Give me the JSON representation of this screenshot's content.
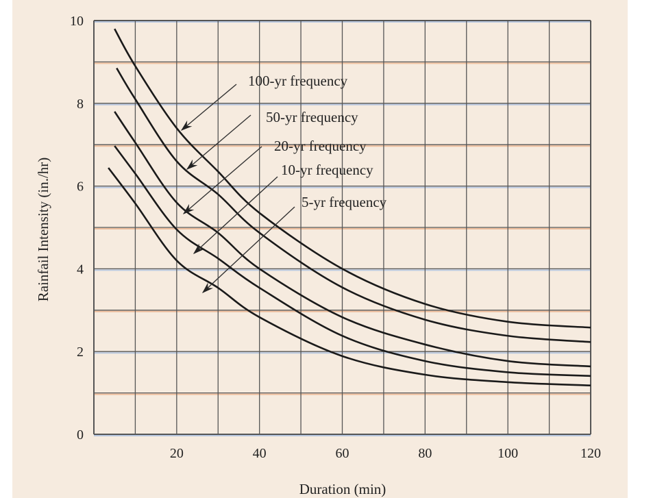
{
  "chart_data": {
    "type": "line",
    "title": "",
    "xlabel": "Duration (min)",
    "ylabel": "Rainfail Intensity (in./hr)",
    "xlim": [
      0,
      120
    ],
    "ylim": [
      0,
      10
    ],
    "x_ticks": [
      20,
      40,
      60,
      80,
      100,
      120
    ],
    "y_ticks": [
      0,
      2,
      4,
      6,
      8,
      10
    ],
    "grid": true,
    "legend": "annotations with arrows pointing to curves",
    "colors": {
      "background": "#f6ebdf",
      "grid": "#555555",
      "grid_tint_a": "#e8a070",
      "grid_tint_b": "#8fb0e0",
      "curve": "#1a1a1a"
    },
    "series": [
      {
        "name": "100-yr frequency",
        "x": [
          5,
          10,
          20,
          30,
          40,
          60,
          80,
          100,
          120
        ],
        "y": [
          9.8,
          8.9,
          7.4,
          6.35,
          5.35,
          4.0,
          3.15,
          2.72,
          2.58
        ]
      },
      {
        "name": "50-yr frequency",
        "x": [
          5.5,
          10,
          20,
          30,
          40,
          60,
          80,
          100,
          120
        ],
        "y": [
          8.85,
          8.1,
          6.6,
          5.8,
          4.87,
          3.55,
          2.77,
          2.38,
          2.23
        ]
      },
      {
        "name": "20-yr frequency",
        "x": [
          5,
          10,
          20,
          30,
          40,
          60,
          80,
          100,
          120
        ],
        "y": [
          7.8,
          7.05,
          5.6,
          4.87,
          4.0,
          2.83,
          2.17,
          1.77,
          1.64
        ]
      },
      {
        "name": "10-yr frequency",
        "x": [
          5,
          10,
          20,
          30,
          40,
          60,
          80,
          100,
          120
        ],
        "y": [
          6.97,
          6.3,
          4.95,
          4.25,
          3.54,
          2.38,
          1.77,
          1.5,
          1.41
        ]
      },
      {
        "name": "5-yr frequency",
        "x": [
          3.5,
          10,
          20,
          30,
          40,
          60,
          80,
          100,
          120
        ],
        "y": [
          6.44,
          5.58,
          4.2,
          3.54,
          2.83,
          1.89,
          1.44,
          1.26,
          1.18
        ]
      }
    ]
  }
}
